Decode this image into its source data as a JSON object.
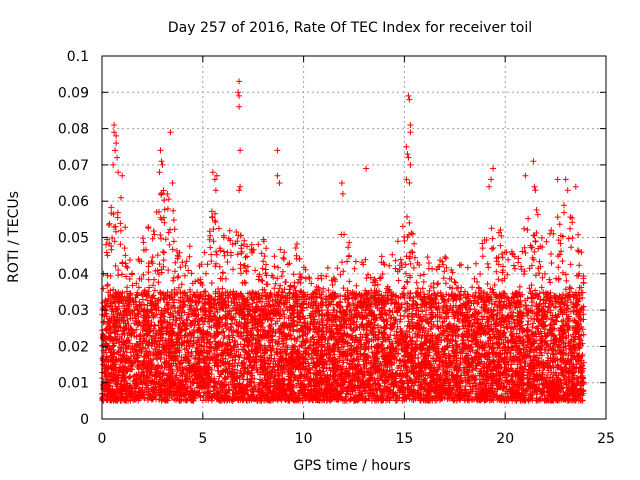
{
  "chart_data": {
    "type": "scatter",
    "title": "Day 257 of 2016, Rate Of TEC Index for receiver toil",
    "xlabel": "GPS time / hours",
    "ylabel": "ROTI / TECUs",
    "xlim": [
      0,
      25
    ],
    "ylim": [
      0,
      0.1
    ],
    "grid": true,
    "marker": "+",
    "color": "#ff0000",
    "xticks": [
      0,
      5,
      10,
      15,
      20,
      25
    ],
    "xtick_labels": [
      "0",
      "5",
      "10",
      "15",
      "20",
      "25"
    ],
    "yticks": [
      0,
      0.01,
      0.02,
      0.03,
      0.04,
      0.05,
      0.06,
      0.07,
      0.08,
      0.09,
      0.1
    ],
    "ytick_labels": [
      "0",
      "0.01",
      "0.02",
      "0.03",
      "0.04",
      "0.05",
      "0.06",
      "0.07",
      "0.08",
      "0.09",
      "0.1"
    ],
    "x_range_of_data": [
      0.0,
      23.9
    ],
    "typical_band": [
      0.005,
      0.035
    ],
    "background_points_count": 9000,
    "envelope": {
      "x": [
        0.0,
        0.5,
        1.0,
        1.5,
        2.0,
        2.5,
        3.0,
        3.5,
        4.0,
        4.5,
        5.0,
        5.5,
        6.0,
        6.5,
        7.0,
        7.5,
        8.0,
        8.5,
        9.0,
        9.5,
        10.0,
        10.5,
        11.0,
        11.5,
        12.0,
        12.5,
        13.0,
        13.5,
        14.0,
        14.5,
        15.0,
        15.5,
        16.0,
        16.5,
        17.0,
        17.5,
        18.0,
        18.5,
        19.0,
        19.5,
        20.0,
        20.5,
        21.0,
        21.5,
        22.0,
        22.5,
        23.0,
        23.5,
        23.9
      ],
      "ymax": [
        0.045,
        0.06,
        0.065,
        0.04,
        0.05,
        0.055,
        0.065,
        0.06,
        0.045,
        0.05,
        0.045,
        0.06,
        0.05,
        0.055,
        0.05,
        0.048,
        0.05,
        0.045,
        0.05,
        0.05,
        0.045,
        0.038,
        0.045,
        0.04,
        0.055,
        0.05,
        0.045,
        0.04,
        0.048,
        0.045,
        0.06,
        0.05,
        0.045,
        0.045,
        0.045,
        0.04,
        0.045,
        0.045,
        0.05,
        0.055,
        0.05,
        0.045,
        0.055,
        0.06,
        0.05,
        0.055,
        0.06,
        0.055,
        0.045
      ]
    },
    "peak_points": [
      {
        "x": 0.6,
        "y": 0.081
      },
      {
        "x": 0.6,
        "y": 0.079
      },
      {
        "x": 0.7,
        "y": 0.078
      },
      {
        "x": 0.65,
        "y": 0.074
      },
      {
        "x": 0.7,
        "y": 0.076
      },
      {
        "x": 0.55,
        "y": 0.07
      },
      {
        "x": 0.75,
        "y": 0.072
      },
      {
        "x": 0.8,
        "y": 0.068
      },
      {
        "x": 0.2,
        "y": 0.048
      },
      {
        "x": 1.0,
        "y": 0.067
      },
      {
        "x": 2.9,
        "y": 0.074
      },
      {
        "x": 2.95,
        "y": 0.071
      },
      {
        "x": 3.0,
        "y": 0.07
      },
      {
        "x": 2.85,
        "y": 0.068
      },
      {
        "x": 3.4,
        "y": 0.079
      },
      {
        "x": 3.5,
        "y": 0.065
      },
      {
        "x": 5.5,
        "y": 0.068
      },
      {
        "x": 5.6,
        "y": 0.066
      },
      {
        "x": 5.7,
        "y": 0.067
      },
      {
        "x": 5.65,
        "y": 0.063
      },
      {
        "x": 6.8,
        "y": 0.093
      },
      {
        "x": 6.8,
        "y": 0.089
      },
      {
        "x": 6.75,
        "y": 0.09
      },
      {
        "x": 6.8,
        "y": 0.086
      },
      {
        "x": 6.85,
        "y": 0.074
      },
      {
        "x": 6.85,
        "y": 0.064
      },
      {
        "x": 6.8,
        "y": 0.063
      },
      {
        "x": 8.7,
        "y": 0.074
      },
      {
        "x": 8.7,
        "y": 0.067
      },
      {
        "x": 8.8,
        "y": 0.065
      },
      {
        "x": 11.9,
        "y": 0.065
      },
      {
        "x": 11.95,
        "y": 0.062
      },
      {
        "x": 13.1,
        "y": 0.069
      },
      {
        "x": 15.2,
        "y": 0.089
      },
      {
        "x": 15.25,
        "y": 0.088
      },
      {
        "x": 15.1,
        "y": 0.075
      },
      {
        "x": 15.3,
        "y": 0.081
      },
      {
        "x": 15.3,
        "y": 0.079
      },
      {
        "x": 15.15,
        "y": 0.073
      },
      {
        "x": 15.2,
        "y": 0.072
      },
      {
        "x": 15.1,
        "y": 0.066
      },
      {
        "x": 15.25,
        "y": 0.065
      },
      {
        "x": 15.3,
        "y": 0.07
      },
      {
        "x": 19.4,
        "y": 0.069
      },
      {
        "x": 19.3,
        "y": 0.066
      },
      {
        "x": 19.2,
        "y": 0.064
      },
      {
        "x": 21.0,
        "y": 0.067
      },
      {
        "x": 21.4,
        "y": 0.071
      },
      {
        "x": 21.45,
        "y": 0.064
      },
      {
        "x": 21.5,
        "y": 0.063
      },
      {
        "x": 22.6,
        "y": 0.066
      },
      {
        "x": 23.0,
        "y": 0.066
      },
      {
        "x": 23.1,
        "y": 0.063
      },
      {
        "x": 23.5,
        "y": 0.064
      }
    ]
  }
}
